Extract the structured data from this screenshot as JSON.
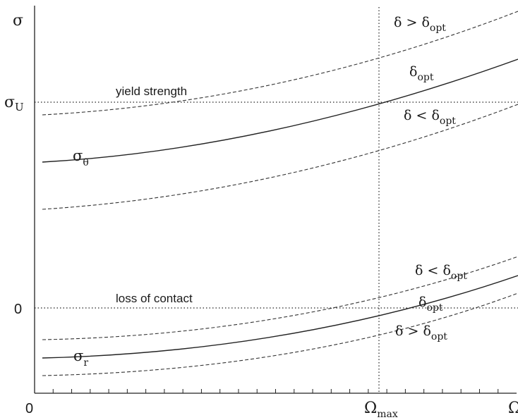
{
  "chart_data": {
    "type": "line",
    "title": "",
    "x_axis": {
      "origin_label": "0",
      "end_label": "Ω",
      "marker_label": {
        "main": "Ω",
        "sub": "max"
      },
      "minor_ticks": 25
    },
    "y_axis": {
      "label": "σ",
      "tick_labels": [
        {
          "id": "sigma-u",
          "main": "σ",
          "sub": "U"
        },
        {
          "id": "zero",
          "main": "0"
        }
      ]
    },
    "reference_lines": [
      {
        "id": "yield",
        "orientation": "horizontal",
        "style": "dotted",
        "label": "yield strength"
      },
      {
        "id": "contact",
        "orientation": "horizontal",
        "style": "dotted",
        "label": "loss of contact"
      },
      {
        "id": "omega-max",
        "orientation": "vertical",
        "style": "dotted"
      }
    ],
    "series": [
      {
        "id": "theta-high",
        "style": "dashed",
        "label": {
          "main": "δ > δ",
          "sub": "opt"
        }
      },
      {
        "id": "theta-opt",
        "style": "solid",
        "label": {
          "main": "δ",
          "sub": "opt"
        },
        "curve_label": {
          "main": "σ",
          "sub": "θ"
        }
      },
      {
        "id": "theta-low",
        "style": "dashed",
        "label": {
          "main": "δ < δ",
          "sub": "opt"
        }
      },
      {
        "id": "r-low",
        "style": "dashed",
        "label": {
          "main": "δ < δ",
          "sub": "opt"
        }
      },
      {
        "id": "r-opt",
        "style": "solid",
        "label": {
          "main": "δ",
          "sub": "opt"
        },
        "curve_label": {
          "main": "σ",
          "sub": "r"
        }
      },
      {
        "id": "r-high",
        "style": "dashed",
        "label": {
          "main": "δ > δ",
          "sub": "opt"
        }
      }
    ]
  }
}
